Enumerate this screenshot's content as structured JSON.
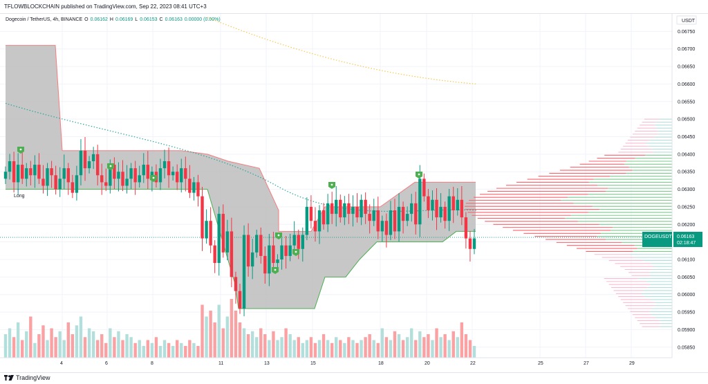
{
  "header": {
    "published_text": "TFLOWBLOCKCHAIN published on TradingView.com, Sep 22, 2023 08:41 UTC+3"
  },
  "legend": {
    "symbol_text": "Dogecoin / TetherUS, 4h, BINANCE",
    "open_label": "O",
    "open_value": "0.06162",
    "high_label": "H",
    "high_value": "0.06169",
    "low_label": "L",
    "low_value": "0.06153",
    "close_label": "C",
    "close_value": "0.06163",
    "change_value": "0.00000 (0.00%)"
  },
  "price_axis": {
    "currency": "USDT",
    "tick_labels": [
      "0.06750",
      "0.06700",
      "0.06650",
      "0.06600",
      "0.06550",
      "0.06500",
      "0.06450",
      "0.06400",
      "0.06350",
      "0.06300",
      "0.06250",
      "0.06200",
      "0.06150",
      "0.06100",
      "0.06050",
      "0.06000",
      "0.05950",
      "0.05900",
      "0.05850"
    ],
    "last_price_symbol": "DOGEUSDT",
    "last_price_value": "0.06163",
    "countdown": "02:18:47"
  },
  "time_axis": {
    "labels": [
      "4",
      "6",
      "8",
      "11",
      "13",
      "15",
      "18",
      "20",
      "22",
      "25",
      "27",
      "29"
    ]
  },
  "annotations": {
    "long_label": "Long"
  },
  "footer": {
    "brand": "TradingView"
  },
  "colors": {
    "up": "#089981",
    "down": "#f23645",
    "up_volume": "#b2dfdb",
    "down_volume": "#faa1a4",
    "band_fill": "#bdbdbd",
    "profile_up": "#7ec98d",
    "profile_down": "#f7636b",
    "marker": "#4caf50",
    "ma_teal": "#26a69a",
    "ma_yellow": "#f7c948",
    "arrow_blue": "#2962ff"
  },
  "chart_data": {
    "type": "candlestick",
    "symbol": "DOGEUSDT",
    "timeframe": "4h",
    "ylim": [
      0.0582,
      0.068
    ],
    "y_ticks": [
      0.0675,
      0.067,
      0.0665,
      0.066,
      0.0655,
      0.065,
      0.0645,
      0.064,
      0.0635,
      0.063,
      0.0625,
      0.062,
      0.0615,
      0.061,
      0.0605,
      0.06,
      0.0595,
      0.059,
      0.0585
    ],
    "last_price": 0.06163,
    "candles_close": [
      0.0635,
      0.0638,
      0.0632,
      0.0637,
      0.0633,
      0.0636,
      0.0634,
      0.0637,
      0.0633,
      0.0631,
      0.0636,
      0.0634,
      0.063,
      0.0633,
      0.0636,
      0.0632,
      0.0629,
      0.0634,
      0.0641,
      0.0636,
      0.0638,
      0.064,
      0.0634,
      0.0632,
      0.0631,
      0.0637,
      0.0633,
      0.0635,
      0.0631,
      0.0633,
      0.0636,
      0.0632,
      0.0634,
      0.0637,
      0.0633,
      0.0635,
      0.0632,
      0.0636,
      0.0638,
      0.0634,
      0.0635,
      0.0632,
      0.0636,
      0.0633,
      0.0629,
      0.0632,
      0.0628,
      0.0616,
      0.0621,
      0.0614,
      0.0609,
      0.0623,
      0.0612,
      0.0618,
      0.0605,
      0.0601,
      0.0596,
      0.0617,
      0.0608,
      0.0612,
      0.0617,
      0.0611,
      0.0606,
      0.0614,
      0.0609,
      0.061,
      0.0614,
      0.0611,
      0.0614,
      0.0617,
      0.0613,
      0.0617,
      0.0625,
      0.0621,
      0.0618,
      0.0624,
      0.062,
      0.0626,
      0.0623,
      0.0627,
      0.0622,
      0.0626,
      0.0623,
      0.0625,
      0.0622,
      0.0627,
      0.0623,
      0.0621,
      0.0624,
      0.0618,
      0.0621,
      0.0617,
      0.0624,
      0.0618,
      0.0625,
      0.0621,
      0.0623,
      0.0626,
      0.062,
      0.0633,
      0.0628,
      0.0624,
      0.0627,
      0.0622,
      0.0625,
      0.0621,
      0.0628,
      0.0624,
      0.0627,
      0.0622,
      0.0616,
      0.0613,
      0.0616
    ],
    "volume_relative": [
      0.4,
      0.5,
      0.35,
      0.6,
      0.3,
      0.45,
      0.7,
      0.25,
      0.4,
      0.55,
      0.3,
      0.5,
      0.35,
      0.45,
      0.3,
      0.6,
      0.4,
      0.55,
      0.7,
      0.35,
      0.5,
      0.45,
      0.3,
      0.4,
      0.25,
      0.5,
      0.35,
      0.45,
      0.3,
      0.4,
      0.35,
      0.25,
      0.3,
      0.2,
      0.3,
      0.25,
      0.35,
      0.2,
      0.3,
      0.25,
      0.2,
      0.3,
      0.25,
      0.2,
      0.3,
      0.25,
      0.2,
      0.9,
      0.7,
      0.8,
      0.6,
      0.9,
      0.5,
      0.7,
      1.0,
      0.8,
      0.6,
      0.5,
      0.4,
      0.45,
      0.35,
      0.5,
      0.4,
      0.3,
      0.45,
      0.3,
      0.35,
      0.5,
      0.4,
      0.3,
      0.35,
      0.25,
      0.3,
      0.35,
      0.25,
      0.3,
      0.4,
      0.3,
      0.25,
      0.35,
      0.3,
      0.25,
      0.35,
      0.3,
      0.25,
      0.3,
      0.35,
      0.4,
      0.3,
      0.25,
      0.5,
      0.35,
      0.3,
      0.45,
      0.4,
      0.3,
      0.35,
      0.5,
      0.3,
      0.45,
      0.35,
      0.4,
      0.3,
      0.5,
      0.35,
      0.4,
      0.3,
      0.45,
      0.35,
      0.6,
      0.4,
      0.3,
      0.2
    ],
    "signal_markers_count": 8,
    "long_signal_count": 1
  }
}
